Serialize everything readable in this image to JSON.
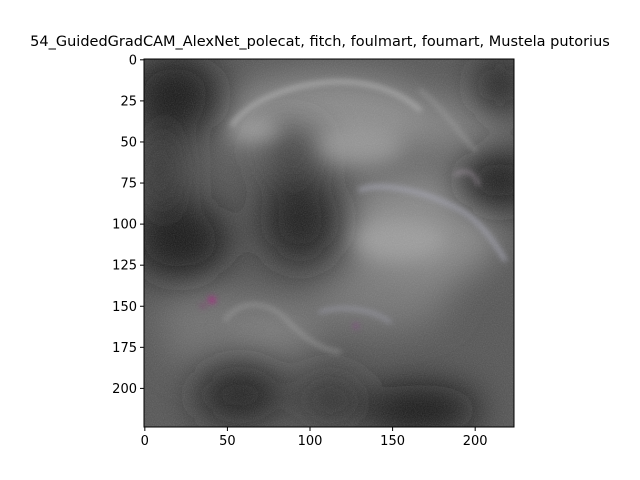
{
  "figure": {
    "title": "54_GuidedGradCAM_AlexNet_polecat, fitch, foulmart, foumart, Mustela putorius"
  },
  "image": {
    "name": "guided-gradcam-heatmap",
    "description_colors": {
      "base": "#5a5a5a",
      "dark": "#111111",
      "light": "#9a9a9a",
      "accent_magenta": "#8a2a6a"
    }
  },
  "axes": {
    "x_ticks": [
      "0",
      "50",
      "100",
      "150",
      "200"
    ],
    "y_ticks": [
      "0",
      "25",
      "50",
      "75",
      "100",
      "125",
      "150",
      "175",
      "200"
    ],
    "x_range": [
      0,
      224
    ],
    "y_range": [
      0,
      224
    ]
  }
}
